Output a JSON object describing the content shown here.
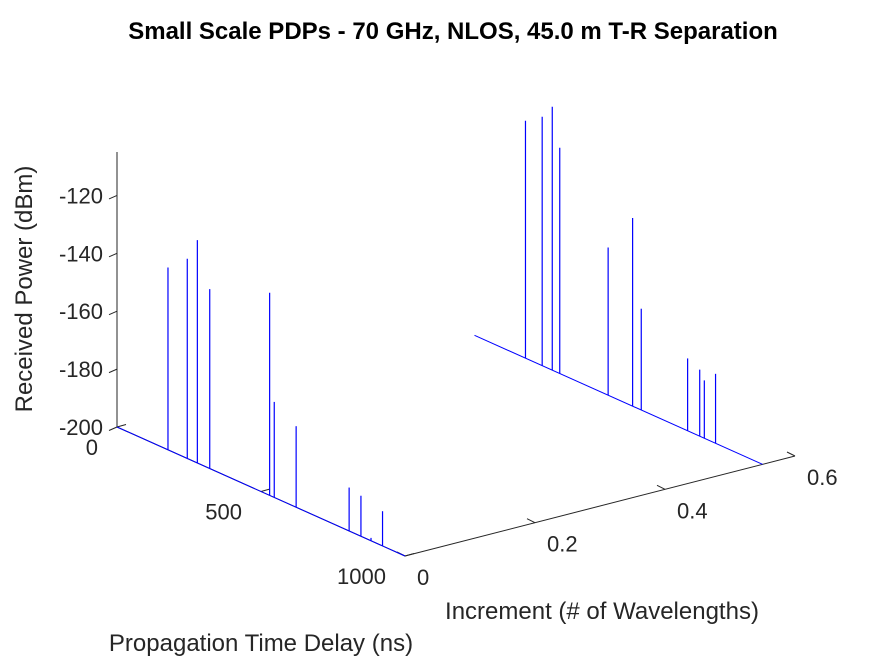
{
  "chart_data": {
    "type": "line",
    "title": "Small Scale PDPs - 70 GHz, NLOS, 45.0 m T-R Separation",
    "xlabel": "Increment (# of Wavelengths)",
    "ylabel": "Propagation Time Delay (ns)",
    "zlabel": "Received Power (dBm)",
    "xlim": [
      0,
      0.6
    ],
    "ylim": [
      0,
      1000
    ],
    "zlim": [
      -200,
      -110
    ],
    "x_ticks": [
      "0",
      "0.2",
      "0.4",
      "0.6"
    ],
    "y_ticks": [
      "0",
      "500",
      "1000"
    ],
    "z_ticks": [
      "-200",
      "-180",
      "-160",
      "-140",
      "-120"
    ],
    "series": [
      {
        "increment": 0,
        "delays": [
          177,
          244,
          279,
          322,
          530,
          546,
          622,
          806,
          847,
          882,
          922
        ],
        "powers": [
          -137,
          -131,
          -123,
          -138,
          -130,
          -167,
          -172,
          -185,
          -186,
          -199,
          -188
        ]
      },
      {
        "increment": 0.55,
        "delays": [
          177,
          235,
          270,
          296,
          464,
          549,
          579,
          740,
          782,
          798,
          837
        ],
        "powers": [
          -118,
          -114,
          -109,
          -122,
          -149,
          -135,
          -165,
          -175,
          -177,
          -180,
          -176
        ]
      }
    ]
  }
}
